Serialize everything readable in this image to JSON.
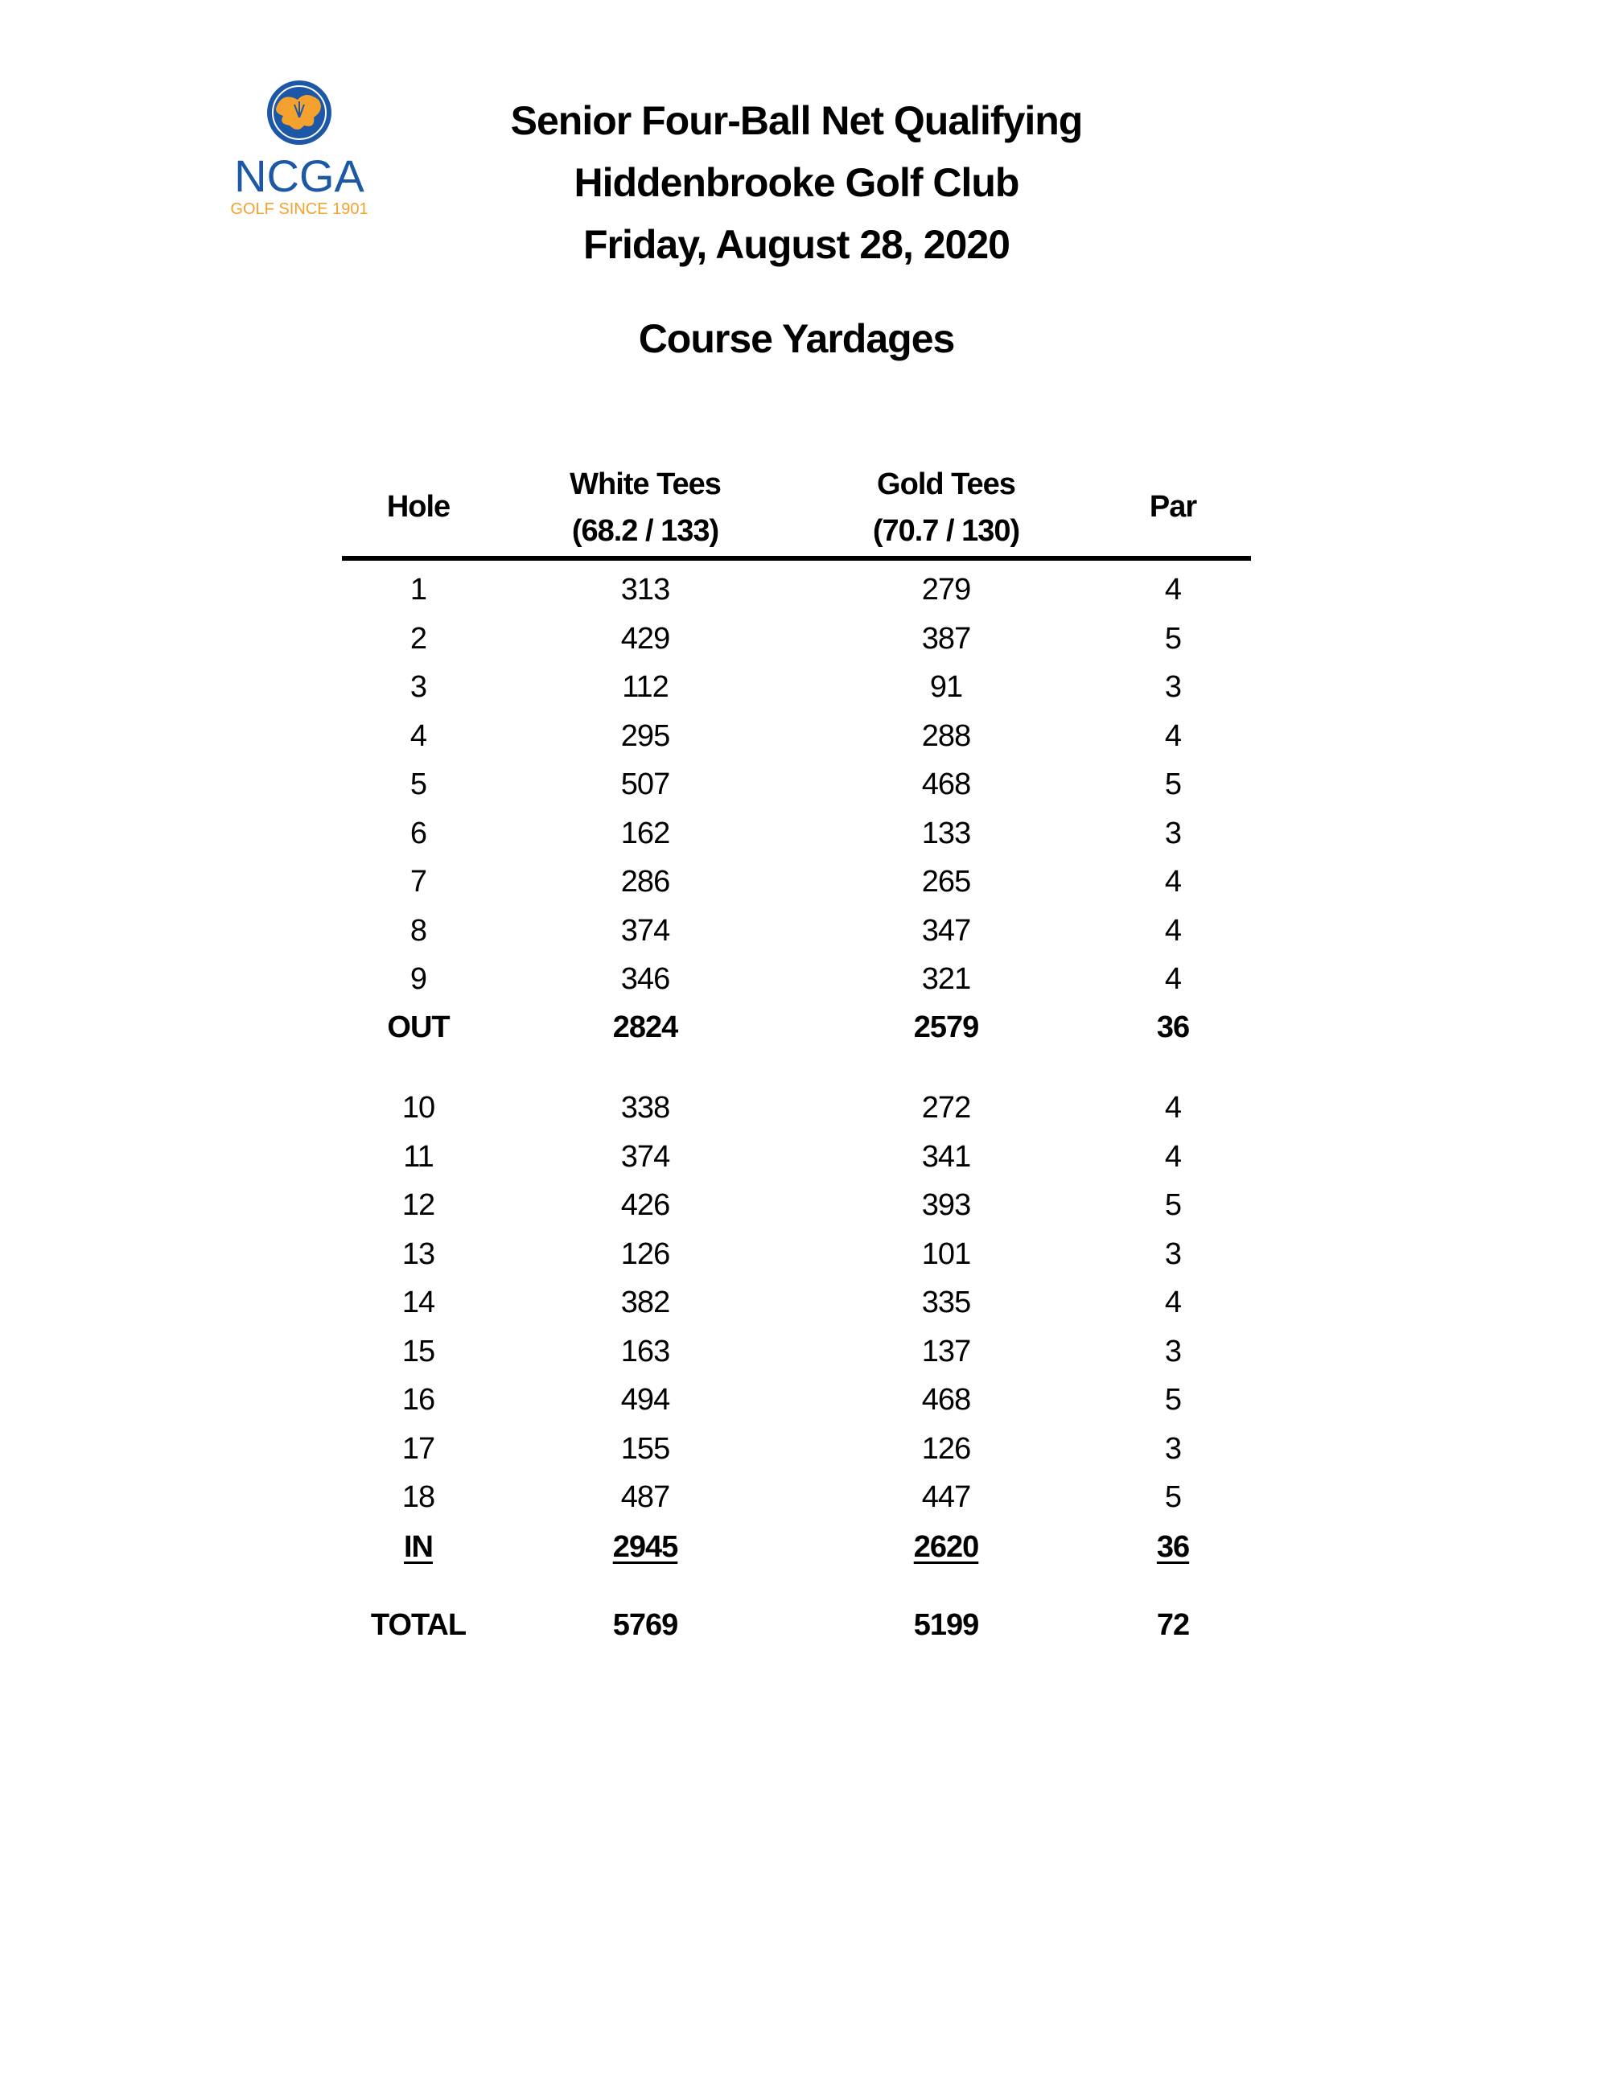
{
  "logo": {
    "text": "NCGA",
    "tagline": "GOLF SINCE 1901",
    "colors": {
      "blue": "#1d58a6",
      "orange": "#f4a12e"
    }
  },
  "header": {
    "line1": "Senior Four-Ball Net Qualifying",
    "line2": "Hiddenbrooke Golf Club",
    "line3": "Friday, August 28, 2020",
    "section": "Course Yardages"
  },
  "table": {
    "columns": {
      "hole": "Hole",
      "white": "White Tees",
      "white_rating": "(68.2 / 133)",
      "gold": "Gold Tees",
      "gold_rating": "(70.7 / 130)",
      "par": "Par"
    },
    "rows": [
      [
        "1",
        "313",
        "279",
        "4"
      ],
      [
        "2",
        "429",
        "387",
        "5"
      ],
      [
        "3",
        "112",
        "91",
        "3"
      ],
      [
        "4",
        "295",
        "288",
        "4"
      ],
      [
        "5",
        "507",
        "468",
        "5"
      ],
      [
        "6",
        "162",
        "133",
        "3"
      ],
      [
        "7",
        "286",
        "265",
        "4"
      ],
      [
        "8",
        "374",
        "347",
        "4"
      ],
      [
        "9",
        "346",
        "321",
        "4"
      ],
      [
        "OUT",
        "2824",
        "2579",
        "36"
      ],
      [
        "10",
        "338",
        "272",
        "4"
      ],
      [
        "11",
        "374",
        "341",
        "4"
      ],
      [
        "12",
        "426",
        "393",
        "5"
      ],
      [
        "13",
        "126",
        "101",
        "3"
      ],
      [
        "14",
        "382",
        "335",
        "4"
      ],
      [
        "15",
        "163",
        "137",
        "3"
      ],
      [
        "16",
        "494",
        "468",
        "5"
      ],
      [
        "17",
        "155",
        "126",
        "3"
      ],
      [
        "18",
        "487",
        "447",
        "5"
      ],
      [
        "IN",
        "2945",
        "2620",
        "36"
      ],
      [
        "TOTAL",
        "5769",
        "5199",
        "72"
      ]
    ]
  }
}
